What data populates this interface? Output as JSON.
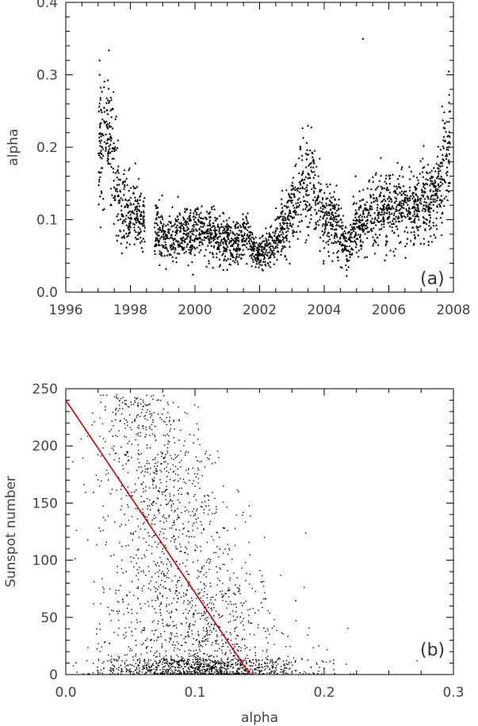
{
  "chart_data": [
    {
      "type": "scatter",
      "panel_label": "(a)",
      "xlabel": "",
      "ylabel": "alpha",
      "xlim": [
        1996,
        2008
      ],
      "ylim": [
        0.0,
        0.4
      ],
      "x_ticks": [
        1996,
        1998,
        2000,
        2002,
        2004,
        2006,
        2008
      ],
      "y_ticks": [
        0.0,
        0.1,
        0.2,
        0.3,
        0.4
      ],
      "x_tick_labels": [
        "1996",
        "1998",
        "2000",
        "2002",
        "2004",
        "2006",
        "2008"
      ],
      "y_tick_labels": [
        "0.0",
        "0.1",
        "0.2",
        "0.3",
        "0.4"
      ],
      "marker": "triangle",
      "marker_color": "#000000",
      "trend": {
        "x": [
          1997.0,
          1997.2,
          1997.5,
          1997.7,
          1998.0,
          1998.4,
          1998.9,
          1999.3,
          1999.7,
          2000.0,
          2000.4,
          2000.8,
          2001.2,
          2001.6,
          2001.9,
          2002.2,
          2002.6,
          2003.0,
          2003.3,
          2003.7,
          2004.0,
          2004.4,
          2004.7,
          2005.0,
          2005.4,
          2005.8,
          2006.2,
          2006.6,
          2007.0,
          2007.3,
          2007.6,
          2007.85
        ],
        "y": [
          0.2,
          0.22,
          0.18,
          0.12,
          0.11,
          0.1,
          0.08,
          0.075,
          0.08,
          0.085,
          0.08,
          0.075,
          0.065,
          0.08,
          0.05,
          0.06,
          0.08,
          0.11,
          0.15,
          0.14,
          0.11,
          0.1,
          0.06,
          0.09,
          0.11,
          0.12,
          0.11,
          0.115,
          0.125,
          0.12,
          0.15,
          0.2
        ]
      },
      "gaps": [
        [
          1998.45,
          1998.75
        ]
      ],
      "outliers": [
        {
          "x": 2005.2,
          "y": 0.35
        },
        {
          "x": 1997.05,
          "y": 0.32
        },
        {
          "x": 2003.5,
          "y": 0.23
        },
        {
          "x": 2007.9,
          "y": 0.25
        }
      ]
    },
    {
      "type": "scatter",
      "panel_label": "(b)",
      "xlabel": "alpha",
      "ylabel": "Sunspot number",
      "xlim": [
        0.0,
        0.3
      ],
      "ylim": [
        0,
        250
      ],
      "x_ticks": [
        0.0,
        0.1,
        0.2,
        0.3
      ],
      "y_ticks": [
        0,
        50,
        100,
        150,
        200,
        250
      ],
      "x_tick_labels": [
        "0.0",
        "0.1",
        "0.2",
        "0.3"
      ],
      "y_tick_labels": [
        "0",
        "50",
        "100",
        "150",
        "200",
        "250"
      ],
      "marker": "dot",
      "marker_color": "#000000",
      "fit_line": {
        "x": [
          0.0,
          0.1425
        ],
        "y": [
          240,
          0
        ],
        "color": "#cc0000"
      },
      "cloud": {
        "alpha_center": 0.095,
        "alpha_spread": 0.04,
        "n_points": 2600
      }
    }
  ]
}
